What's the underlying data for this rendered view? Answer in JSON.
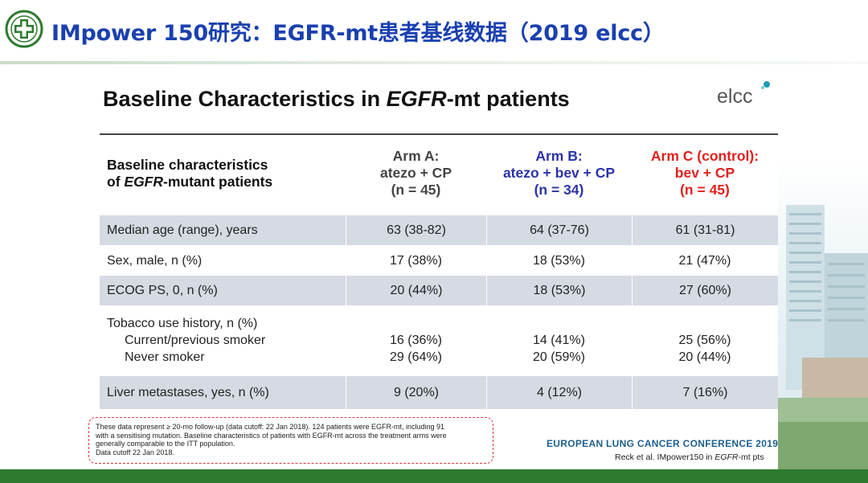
{
  "header": {
    "title": "IMpower 150研究：EGFR-mt患者基线数据（2019 elcc）",
    "accent_color": "#1a40b0",
    "bar_color": "#2f7a2f",
    "logo_icon": "hospital-emblem-icon"
  },
  "slide": {
    "title_prefix": "Baseline Characteristics in ",
    "title_italic": "EGFR",
    "title_suffix": "-mt patients",
    "brand": "elcc",
    "brand_icon": "elcc-droplet-icon"
  },
  "table": {
    "header": {
      "characteristic_line1": "Baseline characteristics",
      "characteristic_line2_prefix": "of ",
      "characteristic_line2_italic": "EGFR",
      "characteristic_line2_suffix": "-mutant patients",
      "arm_a": [
        "Arm A:",
        "atezo + CP",
        "(n = 45)"
      ],
      "arm_b": [
        "Arm B:",
        "atezo + bev + CP",
        "(n = 34)"
      ],
      "arm_c": [
        "Arm C (control):",
        "bev + CP",
        "(n = 45)"
      ]
    },
    "rows": [
      {
        "label": "Median age (range), years",
        "a": "63 (38-82)",
        "b": "64 (37-76)",
        "c": "61 (31-81)"
      },
      {
        "label": "Sex, male, n (%)",
        "a": "17 (38%)",
        "b": "18 (53%)",
        "c": "21 (47%)"
      },
      {
        "label": "ECOG PS, 0, n (%)",
        "a": "20 (44%)",
        "b": "18 (53%)",
        "c": "27 (60%)"
      },
      {
        "label": "Tobacco use history, n (%)",
        "sub1": "Current/previous smoker",
        "sub2": "Never smoker",
        "a1": "16 (36%)",
        "a2": "29 (64%)",
        "b1": "14 (41%)",
        "b2": "20 (59%)",
        "c1": "25 (56%)",
        "c2": "20 (44%)"
      },
      {
        "label": "Liver metastases, yes, n (%)",
        "a": "9 (20%)",
        "b": "4 (12%)",
        "c": "7 (16%)"
      }
    ]
  },
  "footnote": {
    "line1": "These data represent ≥ 20-mo follow-up (data cutoff: 22 Jan 2018). 124 patients were EGFR-mt, including 91",
    "line2": "with a sensitising mutation. Baseline characteristics of patients with EGFR-mt across the treatment arms were",
    "line3": "generally comparable to the ITT population.",
    "line4": "Data cutoff 22 Jan 2018."
  },
  "conference": "EUROPEAN LUNG CANCER CONFERENCE 2019",
  "reference_prefix": "Reck et al. IMpower150 in ",
  "reference_italic": "EGFR",
  "reference_suffix": "-mt pts"
}
